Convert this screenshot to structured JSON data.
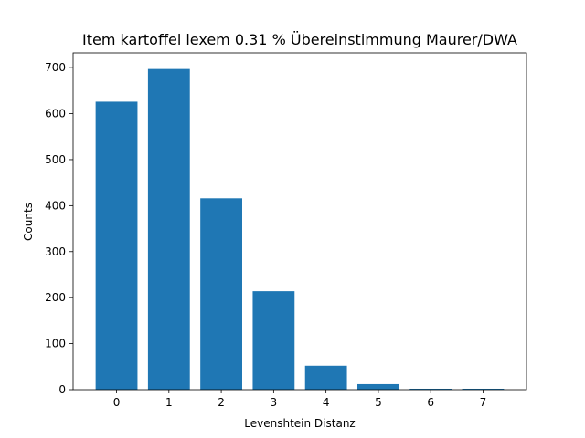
{
  "chart_data": {
    "type": "bar",
    "title": "Item kartoffel lexem 0.31 % Übereinstimmung Maurer/DWA",
    "xlabel": "Levenshtein Distanz",
    "ylabel": "Counts",
    "categories": [
      "0",
      "1",
      "2",
      "3",
      "4",
      "5",
      "6",
      "7"
    ],
    "x": [
      0,
      1,
      2,
      3,
      4,
      5,
      6,
      7
    ],
    "values": [
      626,
      697,
      416,
      214,
      52,
      12,
      2,
      2
    ],
    "xlim": [
      -0.83,
      7.83
    ],
    "ylim": [
      0,
      732
    ],
    "yticks": [
      0,
      100,
      200,
      300,
      400,
      500,
      600,
      700
    ],
    "bar_color": "#1f77b4",
    "grid": false,
    "legend": "none"
  }
}
